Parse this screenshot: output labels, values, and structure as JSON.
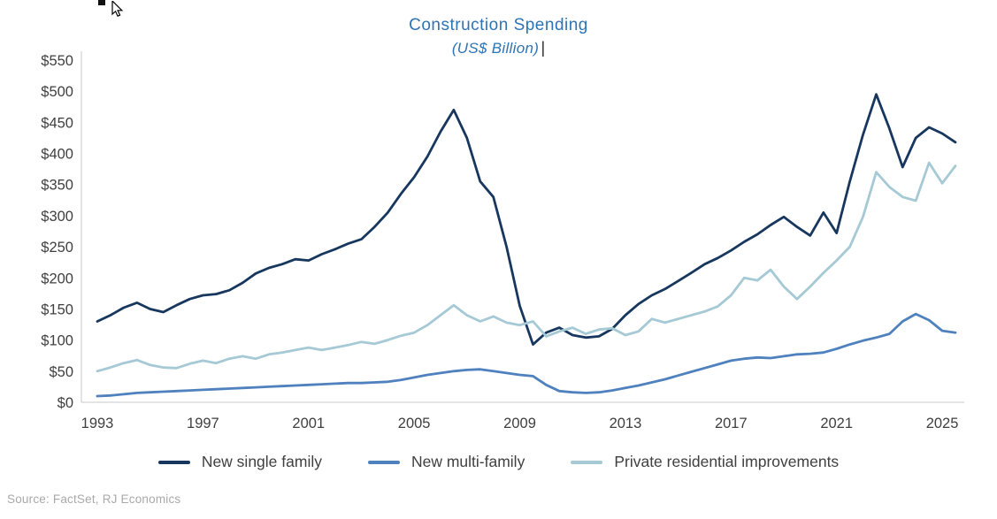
{
  "chart": {
    "text_caret": "|"
  },
  "source": "Source: FactSet, RJ Economics",
  "chart_data": {
    "type": "line",
    "title": "Construction Spending",
    "subtitle": "(US$ Billion)",
    "xlabel": "",
    "ylabel": "",
    "xlim": [
      1993,
      2025.5
    ],
    "ylim": [
      0,
      550
    ],
    "grid": false,
    "legend_position": "bottom",
    "x_ticks": [
      {
        "value": 1993,
        "label": "1993"
      },
      {
        "value": 1997,
        "label": "1997"
      },
      {
        "value": 2001,
        "label": "2001"
      },
      {
        "value": 2005,
        "label": "2005"
      },
      {
        "value": 2009,
        "label": "2009"
      },
      {
        "value": 2013,
        "label": "2013"
      },
      {
        "value": 2017,
        "label": "2017"
      },
      {
        "value": 2021,
        "label": "2021"
      },
      {
        "value": 2025,
        "label": "2025"
      }
    ],
    "y_ticks": [
      {
        "value": 0,
        "label": "$0"
      },
      {
        "value": 50,
        "label": "$50"
      },
      {
        "value": 100,
        "label": "$100"
      },
      {
        "value": 150,
        "label": "$150"
      },
      {
        "value": 200,
        "label": "$200"
      },
      {
        "value": 250,
        "label": "$250"
      },
      {
        "value": 300,
        "label": "$300"
      },
      {
        "value": 350,
        "label": "$350"
      },
      {
        "value": 400,
        "label": "$400"
      },
      {
        "value": 450,
        "label": "$450"
      },
      {
        "value": 500,
        "label": "$500"
      },
      {
        "value": 550,
        "label": "$550"
      }
    ],
    "x": [
      1993,
      1993.5,
      1994,
      1994.5,
      1995,
      1995.5,
      1996,
      1996.5,
      1997,
      1997.5,
      1998,
      1998.5,
      1999,
      1999.5,
      2000,
      2000.5,
      2001,
      2001.5,
      2002,
      2002.5,
      2003,
      2003.5,
      2004,
      2004.5,
      2005,
      2005.5,
      2006,
      2006.5,
      2007,
      2007.5,
      2008,
      2008.5,
      2009,
      2009.5,
      2010,
      2010.5,
      2011,
      2011.5,
      2012,
      2012.5,
      2013,
      2013.5,
      2014,
      2014.5,
      2015,
      2015.5,
      2016,
      2016.5,
      2017,
      2017.5,
      2018,
      2018.5,
      2019,
      2019.5,
      2020,
      2020.5,
      2021,
      2021.5,
      2022,
      2022.5,
      2023,
      2023.5,
      2024,
      2024.5,
      2025,
      2025.5
    ],
    "series": [
      {
        "name": "New single family",
        "color": "#17375E",
        "values": [
          130,
          140,
          152,
          160,
          150,
          145,
          156,
          166,
          172,
          174,
          180,
          192,
          207,
          216,
          222,
          230,
          228,
          238,
          246,
          255,
          262,
          282,
          305,
          335,
          362,
          395,
          435,
          470,
          425,
          355,
          330,
          250,
          155,
          93,
          112,
          120,
          108,
          104,
          106,
          118,
          140,
          158,
          172,
          182,
          195,
          208,
          222,
          232,
          244,
          258,
          270,
          285,
          298,
          282,
          268,
          305,
          272,
          355,
          430,
          495,
          440,
          378,
          425,
          442,
          432,
          418
        ]
      },
      {
        "name": "New multi-family",
        "color": "#4E81BD",
        "values": [
          10,
          11,
          13,
          15,
          16,
          17,
          18,
          19,
          20,
          21,
          22,
          23,
          24,
          25,
          26,
          27,
          28,
          29,
          30,
          31,
          31,
          32,
          33,
          36,
          40,
          44,
          47,
          50,
          52,
          53,
          50,
          47,
          44,
          42,
          28,
          18,
          16,
          15,
          16,
          19,
          23,
          27,
          32,
          37,
          43,
          49,
          55,
          61,
          67,
          70,
          72,
          71,
          74,
          77,
          78,
          80,
          86,
          93,
          99,
          104,
          110,
          130,
          142,
          132,
          115,
          112
        ]
      },
      {
        "name": "Private residential improvements",
        "color": "#A5C9D5",
        "values": [
          50,
          56,
          63,
          68,
          60,
          56,
          55,
          62,
          67,
          63,
          70,
          74,
          70,
          77,
          80,
          84,
          88,
          84,
          88,
          92,
          97,
          94,
          100,
          107,
          112,
          124,
          140,
          156,
          140,
          130,
          138,
          128,
          124,
          130,
          106,
          114,
          120,
          110,
          117,
          119,
          108,
          114,
          134,
          128,
          134,
          140,
          146,
          154,
          172,
          200,
          196,
          213,
          186,
          166,
          186,
          208,
          228,
          250,
          298,
          370,
          346,
          330,
          324,
          385,
          352,
          380
        ]
      }
    ]
  }
}
